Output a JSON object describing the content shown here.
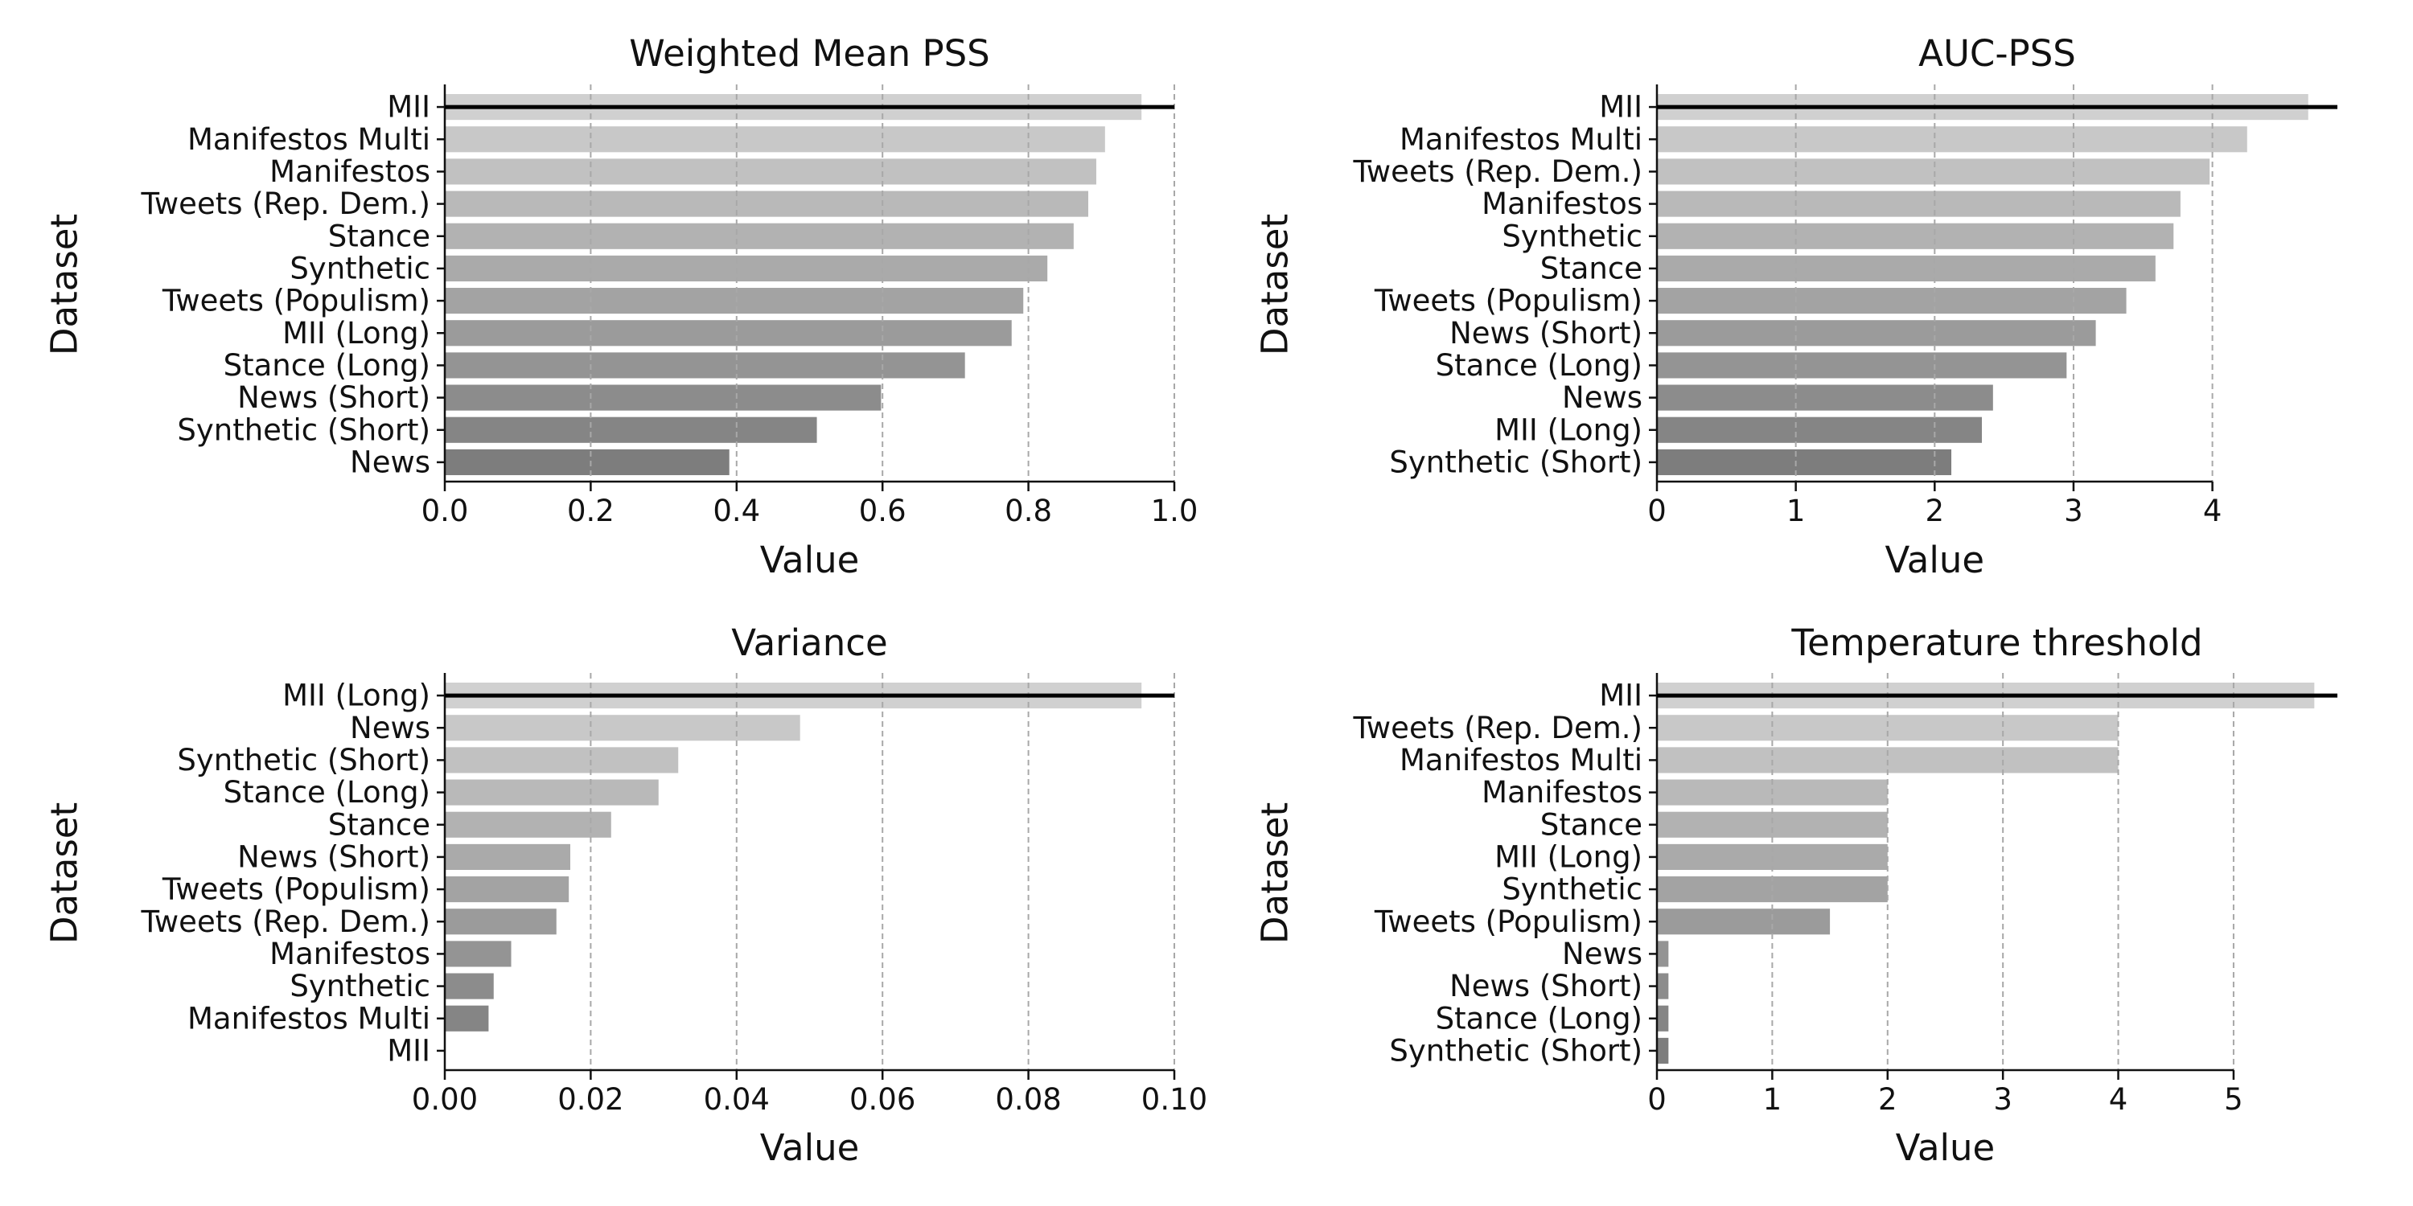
{
  "colors": {
    "bar_lightest": "#d0d0d0",
    "bar_darkest": "#7d7d7d",
    "grid": "#a8a8a8",
    "axis": "#111111",
    "highlight_line": "#000000"
  },
  "chart_data": [
    {
      "type": "bar",
      "orientation": "horizontal",
      "title": "Weighted Mean PSS",
      "xlabel": "Value",
      "ylabel": "Dataset",
      "categories": [
        "MII",
        "Manifestos Multi",
        "Manifestos",
        "Tweets (Rep. Dem.)",
        "Stance",
        "Synthetic",
        "Tweets (Populism)",
        "MII (Long)",
        "Stance (Long)",
        "News (Short)",
        "Synthetic (Short)",
        "News"
      ],
      "values": [
        0.955,
        0.905,
        0.893,
        0.882,
        0.862,
        0.826,
        0.793,
        0.777,
        0.713,
        0.598,
        0.51,
        0.39
      ],
      "xlim": [
        0,
        1.0
      ],
      "xticks": [
        0.0,
        0.2,
        0.4,
        0.6,
        0.8,
        1.0
      ],
      "xtick_labels": [
        "0.0",
        "0.2",
        "0.4",
        "0.6",
        "0.8",
        "1.0"
      ],
      "grid": "x-dashed",
      "highlight": "MII"
    },
    {
      "type": "bar",
      "orientation": "horizontal",
      "title": "AUC-PSS",
      "xlabel": "Value",
      "ylabel": "Dataset",
      "categories": [
        "MII",
        "Manifestos Multi",
        "Tweets (Rep. Dem.)",
        "Manifestos",
        "Synthetic",
        "Stance",
        "Tweets (Populism)",
        "News (Short)",
        "Stance (Long)",
        "News",
        "MII (Long)",
        "Synthetic (Short)"
      ],
      "values": [
        4.69,
        4.25,
        3.98,
        3.77,
        3.72,
        3.59,
        3.38,
        3.16,
        2.95,
        2.42,
        2.34,
        2.12
      ],
      "xlim": [
        0,
        4.9
      ],
      "xticks": [
        0,
        1,
        2,
        3,
        4
      ],
      "xtick_labels": [
        "0",
        "1",
        "2",
        "3",
        "4"
      ],
      "grid": "x-dashed",
      "highlight": "MII"
    },
    {
      "type": "bar",
      "orientation": "horizontal",
      "title": "Variance",
      "xlabel": "Value",
      "ylabel": "Dataset",
      "categories": [
        "MII (Long)",
        "News",
        "Synthetic (Short)",
        "Stance (Long)",
        "Stance",
        "News (Short)",
        "Tweets (Populism)",
        "Tweets (Rep. Dem.)",
        "Manifestos",
        "Synthetic",
        "Manifestos Multi",
        "MII"
      ],
      "values": [
        0.0955,
        0.0487,
        0.032,
        0.0293,
        0.0228,
        0.0172,
        0.017,
        0.0153,
        0.0091,
        0.0067,
        0.006,
        0.0
      ],
      "xlim": [
        0,
        0.1
      ],
      "xticks": [
        0.0,
        0.02,
        0.04,
        0.06,
        0.08,
        0.1
      ],
      "xtick_labels": [
        "0.00",
        "0.02",
        "0.04",
        "0.06",
        "0.08",
        "0.10"
      ],
      "grid": "x-dashed",
      "highlight": "MII (Long)"
    },
    {
      "type": "bar",
      "orientation": "horizontal",
      "title": "Temperature threshold",
      "xlabel": "Value",
      "ylabel": "Dataset",
      "categories": [
        "MII",
        "Tweets (Rep. Dem.)",
        "Manifestos Multi",
        "Manifestos",
        "Stance",
        "MII (Long)",
        "Synthetic",
        "Tweets (Populism)",
        "News",
        "News (Short)",
        "Stance (Long)",
        "Synthetic (Short)"
      ],
      "values": [
        5.7,
        4.0,
        4.0,
        2.0,
        2.0,
        2.0,
        2.0,
        1.5,
        0.1,
        0.1,
        0.1,
        0.1
      ],
      "xlim": [
        0,
        5.9
      ],
      "xticks": [
        0,
        1,
        2,
        3,
        4,
        5
      ],
      "xtick_labels": [
        "0",
        "1",
        "2",
        "3",
        "4",
        "5"
      ],
      "grid": "x-dashed",
      "highlight": "MII"
    }
  ]
}
